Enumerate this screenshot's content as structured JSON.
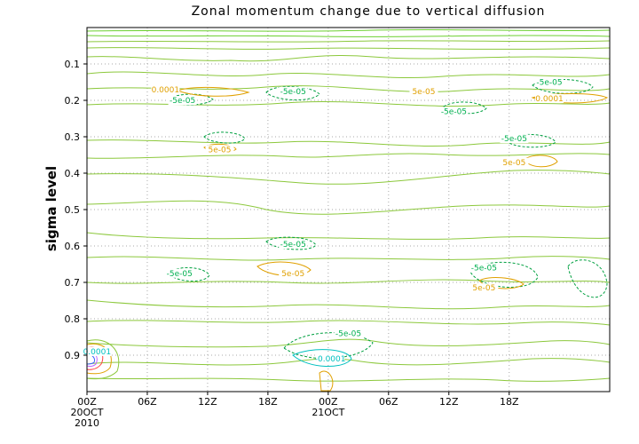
{
  "chart_data": {
    "type": "contour",
    "title": "Zonal momentum change due to vertical diffusion",
    "xlabel": "",
    "ylabel": "sigma level",
    "x_ticks": [
      {
        "label": "00Z",
        "sub": [
          "20OCT",
          "2010"
        ]
      },
      {
        "label": "06Z",
        "sub": []
      },
      {
        "label": "12Z",
        "sub": []
      },
      {
        "label": "18Z",
        "sub": []
      },
      {
        "label": "00Z",
        "sub": [
          "21OCT"
        ]
      },
      {
        "label": "06Z",
        "sub": []
      },
      {
        "label": "12Z",
        "sub": []
      },
      {
        "label": "18Z",
        "sub": []
      }
    ],
    "y_ticks": [
      "0.1",
      "0.2",
      "0.3",
      "0.4",
      "0.5",
      "0.6",
      "0.7",
      "0.8",
      "0.9"
    ],
    "y_reversed": true,
    "grid": true,
    "contour_labels": [
      {
        "text": "0.0001",
        "x_hours": 7.8,
        "sigma": 0.175,
        "color": "#e0a000"
      },
      {
        "text": "-5e-05",
        "x_hours": 9.5,
        "sigma": 0.205,
        "color": "#00b050"
      },
      {
        "text": "5e-05",
        "x_hours": 13.2,
        "sigma": 0.34,
        "color": "#e0a000"
      },
      {
        "text": "-5e-05",
        "x_hours": 20.5,
        "sigma": 0.18,
        "color": "#00b050"
      },
      {
        "text": "5e-05",
        "x_hours": 33.5,
        "sigma": 0.18,
        "color": "#e0a000"
      },
      {
        "text": "-5e-05",
        "x_hours": 36.5,
        "sigma": 0.235,
        "color": "#00b050"
      },
      {
        "text": "-5e-05",
        "x_hours": 46.0,
        "sigma": 0.155,
        "color": "#00b050"
      },
      {
        "text": "0.0001",
        "x_hours": 46.0,
        "sigma": 0.2,
        "color": "#e0a000"
      },
      {
        "text": "-5e-05",
        "x_hours": 42.5,
        "sigma": 0.31,
        "color": "#00b050"
      },
      {
        "text": "5e-05",
        "x_hours": 42.5,
        "sigma": 0.375,
        "color": "#e0a000"
      },
      {
        "text": "-5e-05",
        "x_hours": 9.2,
        "sigma": 0.68,
        "color": "#00b050"
      },
      {
        "text": "-5e-05",
        "x_hours": 20.5,
        "sigma": 0.6,
        "color": "#00b050"
      },
      {
        "text": "5e-05",
        "x_hours": 20.5,
        "sigma": 0.68,
        "color": "#e0a000"
      },
      {
        "text": "-5e-05",
        "x_hours": 39.5,
        "sigma": 0.665,
        "color": "#00b050"
      },
      {
        "text": "5e-05",
        "x_hours": 39.5,
        "sigma": 0.72,
        "color": "#e0a000"
      },
      {
        "text": "-5e-05",
        "x_hours": 26.0,
        "sigma": 0.845,
        "color": "#00b050"
      },
      {
        "text": "-0.0001",
        "x_hours": 24.2,
        "sigma": 0.915,
        "color": "#00c0c0"
      },
      {
        "text": "0.0001",
        "x_hours": 1.0,
        "sigma": 0.895,
        "color": "#00c0c0"
      }
    ]
  }
}
